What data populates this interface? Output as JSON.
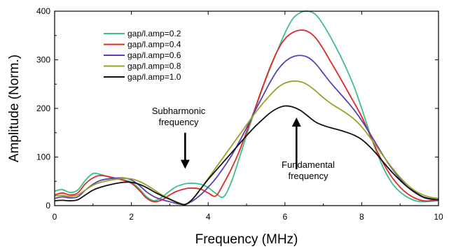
{
  "chart_data": {
    "type": "line",
    "title": "",
    "xlabel": "Frequency  (MHz)",
    "ylabel": "Amplitude (Norm.)",
    "xlim": [
      0,
      10
    ],
    "ylim": [
      0,
      400
    ],
    "xticks": [
      0,
      2,
      4,
      6,
      8,
      10
    ],
    "yticks": [
      0,
      100,
      200,
      300,
      400
    ],
    "grid": false,
    "legend_position": "top-left",
    "series": [
      {
        "name": "gap/l.amp=0.2",
        "color": "#3dbf8a",
        "points": [
          [
            0,
            30
          ],
          [
            0.2,
            33
          ],
          [
            0.4,
            27
          ],
          [
            0.6,
            32
          ],
          [
            0.8,
            52
          ],
          [
            1.0,
            66
          ],
          [
            1.2,
            64
          ],
          [
            1.5,
            57
          ],
          [
            1.8,
            53
          ],
          [
            2.0,
            48
          ],
          [
            2.2,
            35
          ],
          [
            2.4,
            18
          ],
          [
            2.6,
            10
          ],
          [
            2.8,
            18
          ],
          [
            3.0,
            30
          ],
          [
            3.2,
            40
          ],
          [
            3.5,
            46
          ],
          [
            3.8,
            44
          ],
          [
            4.0,
            37
          ],
          [
            4.2,
            25
          ],
          [
            4.4,
            18
          ],
          [
            4.6,
            48
          ],
          [
            4.8,
            95
          ],
          [
            5.0,
            145
          ],
          [
            5.2,
            192
          ],
          [
            5.4,
            238
          ],
          [
            5.6,
            280
          ],
          [
            5.8,
            318
          ],
          [
            6.0,
            355
          ],
          [
            6.2,
            384
          ],
          [
            6.4,
            397
          ],
          [
            6.6,
            400
          ],
          [
            6.8,
            393
          ],
          [
            7.0,
            372
          ],
          [
            7.2,
            345
          ],
          [
            7.4,
            315
          ],
          [
            7.6,
            282
          ],
          [
            7.8,
            245
          ],
          [
            8.0,
            200
          ],
          [
            8.2,
            152
          ],
          [
            8.4,
            108
          ],
          [
            8.6,
            72
          ],
          [
            8.8,
            45
          ],
          [
            9.0,
            28
          ],
          [
            9.2,
            17
          ],
          [
            9.4,
            10
          ],
          [
            9.6,
            8
          ],
          [
            9.8,
            9
          ],
          [
            10.0,
            10
          ]
        ]
      },
      {
        "name": "gap/l.amp=0.4",
        "color": "#e02828",
        "points": [
          [
            0,
            22
          ],
          [
            0.2,
            26
          ],
          [
            0.4,
            22
          ],
          [
            0.6,
            26
          ],
          [
            0.8,
            45
          ],
          [
            1.0,
            57
          ],
          [
            1.2,
            62
          ],
          [
            1.5,
            58
          ],
          [
            1.8,
            52
          ],
          [
            2.0,
            46
          ],
          [
            2.2,
            32
          ],
          [
            2.4,
            15
          ],
          [
            2.6,
            8
          ],
          [
            2.8,
            12
          ],
          [
            3.0,
            22
          ],
          [
            3.2,
            30
          ],
          [
            3.5,
            36
          ],
          [
            3.8,
            34
          ],
          [
            4.0,
            26
          ],
          [
            4.2,
            20
          ],
          [
            4.4,
            45
          ],
          [
            4.6,
            75
          ],
          [
            4.8,
            110
          ],
          [
            5.0,
            152
          ],
          [
            5.2,
            195
          ],
          [
            5.4,
            240
          ],
          [
            5.6,
            282
          ],
          [
            5.8,
            318
          ],
          [
            6.0,
            343
          ],
          [
            6.2,
            356
          ],
          [
            6.4,
            361
          ],
          [
            6.6,
            358
          ],
          [
            6.8,
            345
          ],
          [
            7.0,
            322
          ],
          [
            7.2,
            295
          ],
          [
            7.4,
            268
          ],
          [
            7.6,
            240
          ],
          [
            7.8,
            212
          ],
          [
            8.0,
            183
          ],
          [
            8.2,
            148
          ],
          [
            8.4,
            112
          ],
          [
            8.6,
            82
          ],
          [
            8.8,
            57
          ],
          [
            9.0,
            38
          ],
          [
            9.2,
            24
          ],
          [
            9.4,
            15
          ],
          [
            9.6,
            10
          ],
          [
            9.8,
            10
          ],
          [
            10.0,
            12
          ]
        ]
      },
      {
        "name": "gap/l.amp=0.6",
        "color": "#5a3fb8",
        "points": [
          [
            0,
            15
          ],
          [
            0.2,
            18
          ],
          [
            0.4,
            16
          ],
          [
            0.6,
            18
          ],
          [
            0.8,
            32
          ],
          [
            1.0,
            44
          ],
          [
            1.2,
            52
          ],
          [
            1.5,
            56
          ],
          [
            1.8,
            57
          ],
          [
            2.0,
            53
          ],
          [
            2.2,
            42
          ],
          [
            2.4,
            28
          ],
          [
            2.6,
            18
          ],
          [
            2.8,
            12
          ],
          [
            3.0,
            8
          ],
          [
            3.2,
            4
          ],
          [
            3.4,
            3
          ],
          [
            3.6,
            10
          ],
          [
            3.8,
            22
          ],
          [
            4.0,
            38
          ],
          [
            4.2,
            56
          ],
          [
            4.4,
            78
          ],
          [
            4.6,
            102
          ],
          [
            4.8,
            130
          ],
          [
            5.0,
            160
          ],
          [
            5.2,
            192
          ],
          [
            5.4,
            222
          ],
          [
            5.6,
            252
          ],
          [
            5.8,
            278
          ],
          [
            6.0,
            296
          ],
          [
            6.2,
            306
          ],
          [
            6.4,
            309
          ],
          [
            6.6,
            305
          ],
          [
            6.8,
            292
          ],
          [
            7.0,
            272
          ],
          [
            7.2,
            252
          ],
          [
            7.4,
            234
          ],
          [
            7.6,
            216
          ],
          [
            7.8,
            197
          ],
          [
            8.0,
            175
          ],
          [
            8.2,
            150
          ],
          [
            8.4,
            124
          ],
          [
            8.6,
            98
          ],
          [
            8.8,
            75
          ],
          [
            9.0,
            55
          ],
          [
            9.2,
            38
          ],
          [
            9.4,
            26
          ],
          [
            9.6,
            17
          ],
          [
            9.8,
            13
          ],
          [
            10.0,
            12
          ]
        ]
      },
      {
        "name": "gap/l.amp=0.8",
        "color": "#9aa02a",
        "points": [
          [
            0,
            20
          ],
          [
            0.2,
            21
          ],
          [
            0.4,
            19
          ],
          [
            0.6,
            22
          ],
          [
            0.8,
            32
          ],
          [
            1.0,
            42
          ],
          [
            1.2,
            48
          ],
          [
            1.5,
            53
          ],
          [
            1.8,
            56
          ],
          [
            2.0,
            55
          ],
          [
            2.2,
            50
          ],
          [
            2.4,
            42
          ],
          [
            2.6,
            32
          ],
          [
            2.8,
            22
          ],
          [
            3.0,
            14
          ],
          [
            3.2,
            7
          ],
          [
            3.4,
            3
          ],
          [
            3.6,
            14
          ],
          [
            3.8,
            34
          ],
          [
            4.0,
            56
          ],
          [
            4.2,
            78
          ],
          [
            4.4,
            100
          ],
          [
            4.6,
            122
          ],
          [
            4.8,
            144
          ],
          [
            5.0,
            166
          ],
          [
            5.2,
            188
          ],
          [
            5.4,
            208
          ],
          [
            5.6,
            226
          ],
          [
            5.8,
            242
          ],
          [
            6.0,
            252
          ],
          [
            6.2,
            256
          ],
          [
            6.4,
            255
          ],
          [
            6.6,
            248
          ],
          [
            6.8,
            236
          ],
          [
            7.0,
            222
          ],
          [
            7.2,
            210
          ],
          [
            7.4,
            200
          ],
          [
            7.6,
            190
          ],
          [
            7.8,
            178
          ],
          [
            8.0,
            162
          ],
          [
            8.2,
            142
          ],
          [
            8.4,
            120
          ],
          [
            8.6,
            98
          ],
          [
            8.8,
            77
          ],
          [
            9.0,
            58
          ],
          [
            9.2,
            42
          ],
          [
            9.4,
            30
          ],
          [
            9.6,
            22
          ],
          [
            9.8,
            17
          ],
          [
            10.0,
            15
          ]
        ]
      },
      {
        "name": "gap/l.amp=1.0",
        "color": "#111111",
        "points": [
          [
            0,
            10
          ],
          [
            0.2,
            11
          ],
          [
            0.4,
            10
          ],
          [
            0.6,
            12
          ],
          [
            0.8,
            22
          ],
          [
            1.0,
            32
          ],
          [
            1.2,
            38
          ],
          [
            1.5,
            44
          ],
          [
            1.8,
            48
          ],
          [
            2.0,
            48
          ],
          [
            2.2,
            44
          ],
          [
            2.4,
            37
          ],
          [
            2.6,
            28
          ],
          [
            2.8,
            20
          ],
          [
            3.0,
            13
          ],
          [
            3.2,
            6
          ],
          [
            3.4,
            2
          ],
          [
            3.6,
            14
          ],
          [
            3.8,
            34
          ],
          [
            4.0,
            54
          ],
          [
            4.2,
            72
          ],
          [
            4.4,
            90
          ],
          [
            4.6,
            108
          ],
          [
            4.8,
            126
          ],
          [
            5.0,
            144
          ],
          [
            5.2,
            161
          ],
          [
            5.4,
            176
          ],
          [
            5.6,
            190
          ],
          [
            5.8,
            200
          ],
          [
            6.0,
            205
          ],
          [
            6.2,
            203
          ],
          [
            6.4,
            196
          ],
          [
            6.6,
            184
          ],
          [
            6.8,
            172
          ],
          [
            7.0,
            165
          ],
          [
            7.2,
            160
          ],
          [
            7.4,
            156
          ],
          [
            7.6,
            151
          ],
          [
            7.8,
            145
          ],
          [
            8.0,
            136
          ],
          [
            8.2,
            122
          ],
          [
            8.4,
            105
          ],
          [
            8.6,
            86
          ],
          [
            8.8,
            68
          ],
          [
            9.0,
            52
          ],
          [
            9.2,
            38
          ],
          [
            9.4,
            27
          ],
          [
            9.6,
            18
          ],
          [
            9.8,
            14
          ],
          [
            10.0,
            12
          ]
        ]
      }
    ],
    "annotations": [
      {
        "lines": [
          "Subharmonic",
          "frequency"
        ],
        "arrow_direction": "down",
        "arrow_x": 3.4,
        "arrow_from_y": 150,
        "arrow_to_y": 85
      },
      {
        "lines": [
          "Fundamental",
          "frequency"
        ],
        "arrow_direction": "up",
        "arrow_x": 6.3,
        "arrow_from_y": 75,
        "arrow_to_y": 172
      }
    ]
  }
}
